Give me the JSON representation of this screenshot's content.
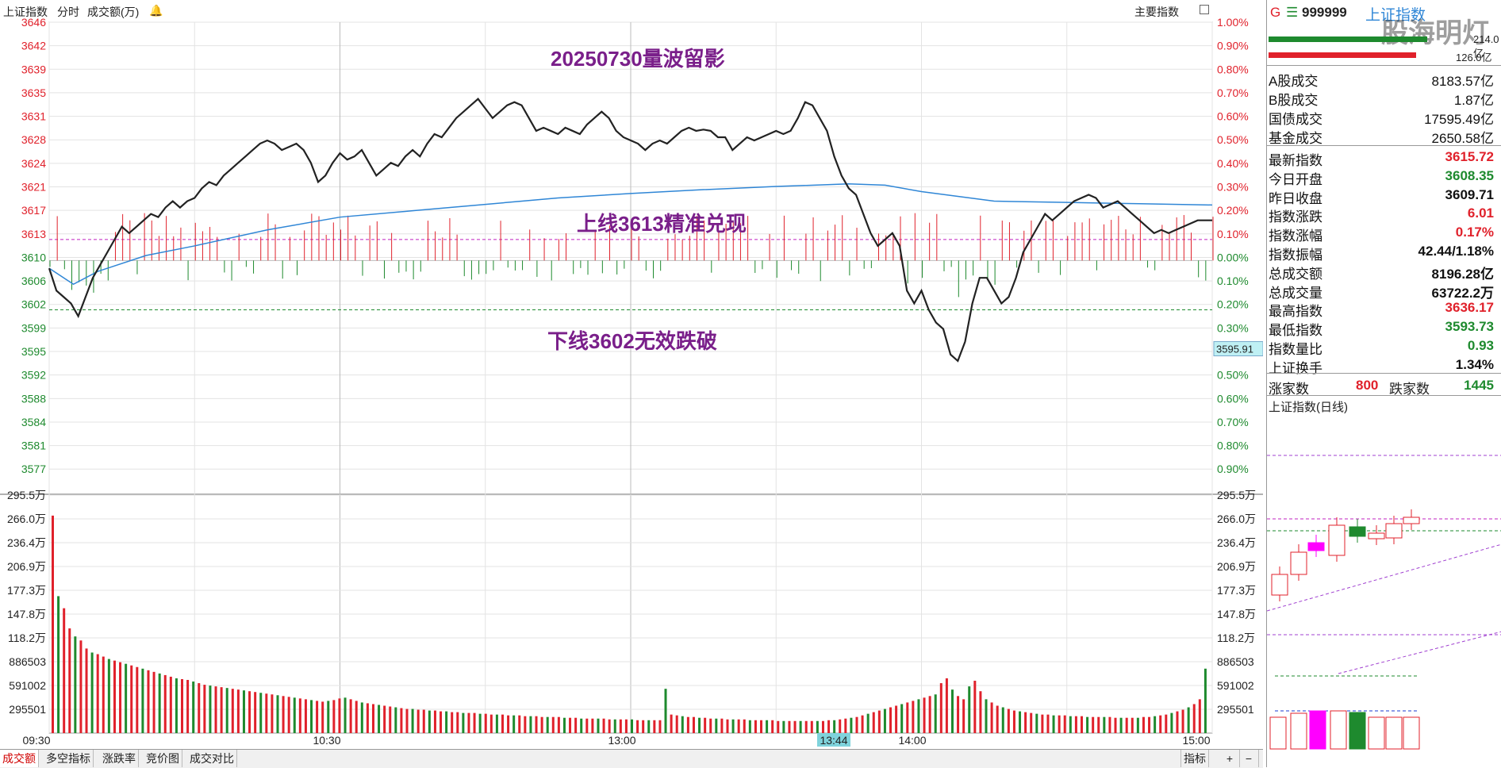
{
  "header": {
    "index_name": "上证指数",
    "mode": "分时",
    "indicator": "成交额(万)",
    "right_button": "主要指数"
  },
  "annotations": {
    "title": "20250730量波留影",
    "upper_line": "上线3613精准兑现",
    "lower_line": "下线3602无效跌破"
  },
  "price_axis": {
    "left_labels": [
      "3646",
      "3642",
      "3639",
      "3635",
      "3631",
      "3628",
      "3624",
      "3621",
      "3617",
      "3613",
      "3610",
      "3606",
      "3602",
      "3599",
      "3595",
      "3592",
      "3588",
      "3584",
      "3581",
      "3577"
    ],
    "right_labels": [
      "1.00%",
      "0.90%",
      "0.80%",
      "0.70%",
      "0.60%",
      "0.50%",
      "0.40%",
      "0.30%",
      "0.20%",
      "0.10%",
      "0.00%",
      "0.10%",
      "0.20%",
      "0.30%",
      "0.40%",
      "0.50%",
      "0.60%",
      "0.70%",
      "0.80%",
      "0.90%"
    ],
    "cursor_value": "3595.91"
  },
  "volume_axis": {
    "labels": [
      "295.5万",
      "266.0万",
      "236.4万",
      "206.9万",
      "177.3万",
      "147.8万",
      "118.2万",
      "886503",
      "591002",
      "295501"
    ]
  },
  "time_axis": {
    "labels": [
      "09:30",
      "10:30",
      "13:00",
      "14:00",
      "15:00"
    ],
    "cursor_time": "13:44"
  },
  "bottom_tabs": [
    "成交额",
    "多空指标",
    "涨跌率",
    "竞价图",
    "成交对比"
  ],
  "bottom_right": {
    "indicator_btn": "指标",
    "plus": "+",
    "minus": "−"
  },
  "side": {
    "flag": "G",
    "code": "999999",
    "name": "上证指数",
    "watermark": "股海明灯",
    "bar_values": [
      "214.0亿",
      "126.0亿"
    ],
    "turnover": [
      {
        "label": "A股成交",
        "value": "8183.57亿"
      },
      {
        "label": "B股成交",
        "value": "1.87亿"
      },
      {
        "label": "国债成交",
        "value": "17595.49亿"
      },
      {
        "label": "基金成交",
        "value": "2650.58亿"
      }
    ],
    "stats": [
      {
        "label": "最新指数",
        "value": "3615.72",
        "color": "red"
      },
      {
        "label": "今日开盘",
        "value": "3608.35",
        "color": "green"
      },
      {
        "label": "昨日收盘",
        "value": "3609.71",
        "color": "black"
      },
      {
        "label": "指数涨跌",
        "value": "6.01",
        "color": "red"
      },
      {
        "label": "指数涨幅",
        "value": "0.17%",
        "color": "red"
      },
      {
        "label": "指数振幅",
        "value": "42.44/1.18%",
        "color": "black"
      },
      {
        "label": "总成交额",
        "value": "8196.28亿",
        "color": "black"
      },
      {
        "label": "总成交量",
        "value": "63722.2万",
        "color": "black"
      },
      {
        "label": "最高指数",
        "value": "3636.17",
        "color": "red"
      },
      {
        "label": "最低指数",
        "value": "3593.73",
        "color": "green"
      },
      {
        "label": "指数量比",
        "value": "0.93",
        "color": "green"
      },
      {
        "label": "上证换手",
        "value": "1.34%",
        "color": "black"
      }
    ],
    "breadth": {
      "up_label": "涨家数",
      "up_value": "800",
      "down_label": "跌家数",
      "down_value": "1445"
    },
    "daily_title": "上证指数(日线)"
  },
  "colors": {
    "up": "#e0212b",
    "down": "#1e8a2e",
    "price_line": "#222222",
    "avg_line": "#2f86d6",
    "annotation": "#7a1f8a"
  },
  "chart_data": {
    "type": "line",
    "title": "",
    "price_series": [
      [
        0,
        3608.5
      ],
      [
        3,
        3605
      ],
      [
        6,
        3604
      ],
      [
        9,
        3603
      ],
      [
        12,
        3601
      ],
      [
        15,
        3604
      ],
      [
        18,
        3607
      ],
      [
        21,
        3609
      ],
      [
        24,
        3611
      ],
      [
        27,
        3613
      ],
      [
        30,
        3615
      ],
      [
        33,
        3614
      ],
      [
        36,
        3615
      ],
      [
        39,
        3616
      ],
      [
        42,
        3617
      ],
      [
        45,
        3616.5
      ],
      [
        48,
        3618
      ],
      [
        51,
        3619
      ],
      [
        54,
        3618
      ],
      [
        57,
        3619
      ],
      [
        60,
        3619.5
      ],
      [
        63,
        3621
      ],
      [
        66,
        3622
      ],
      [
        69,
        3621.5
      ],
      [
        72,
        3623
      ],
      [
        75,
        3624
      ],
      [
        78,
        3625
      ],
      [
        81,
        3626
      ],
      [
        84,
        3627
      ],
      [
        87,
        3628
      ],
      [
        90,
        3628.5
      ],
      [
        93,
        3628
      ],
      [
        96,
        3627
      ],
      [
        99,
        3627.5
      ],
      [
        102,
        3628
      ],
      [
        105,
        3627
      ],
      [
        108,
        3625
      ],
      [
        111,
        3622
      ],
      [
        114,
        3623
      ],
      [
        117,
        3625
      ],
      [
        120,
        3626.5
      ],
      [
        123,
        3625.5
      ],
      [
        126,
        3626
      ],
      [
        129,
        3627
      ],
      [
        132,
        3625
      ],
      [
        135,
        3623
      ],
      [
        138,
        3624
      ],
      [
        141,
        3625
      ],
      [
        144,
        3624.5
      ],
      [
        147,
        3626
      ],
      [
        150,
        3627
      ],
      [
        153,
        3626
      ],
      [
        156,
        3628
      ],
      [
        159,
        3629.5
      ],
      [
        162,
        3629
      ],
      [
        165,
        3630.5
      ],
      [
        168,
        3632
      ],
      [
        171,
        3633
      ],
      [
        174,
        3634
      ],
      [
        177,
        3635
      ],
      [
        180,
        3633.5
      ],
      [
        183,
        3632
      ],
      [
        186,
        3633
      ],
      [
        189,
        3634
      ],
      [
        192,
        3634.5
      ],
      [
        195,
        3634
      ],
      [
        198,
        3632
      ],
      [
        201,
        3630
      ],
      [
        204,
        3630.5
      ],
      [
        207,
        3630
      ],
      [
        210,
        3629.5
      ],
      [
        213,
        3630.5
      ],
      [
        216,
        3630
      ],
      [
        219,
        3629.5
      ],
      [
        222,
        3631
      ],
      [
        225,
        3632
      ],
      [
        228,
        3633
      ],
      [
        231,
        3632
      ],
      [
        234,
        3630
      ],
      [
        237,
        3629
      ],
      [
        240,
        3628.5
      ],
      [
        243,
        3628
      ],
      [
        246,
        3627
      ],
      [
        249,
        3628
      ],
      [
        252,
        3628.5
      ],
      [
        255,
        3628
      ],
      [
        258,
        3629
      ],
      [
        261,
        3630
      ],
      [
        264,
        3630.5
      ],
      [
        267,
        3630
      ],
      [
        270,
        3630.2
      ],
      [
        273,
        3630
      ],
      [
        276,
        3629
      ],
      [
        279,
        3629
      ],
      [
        282,
        3627
      ],
      [
        285,
        3628
      ],
      [
        288,
        3629
      ],
      [
        291,
        3628.5
      ],
      [
        294,
        3629
      ],
      [
        297,
        3629.5
      ],
      [
        300,
        3630
      ],
      [
        303,
        3629.5
      ],
      [
        306,
        3630
      ],
      [
        309,
        3632
      ],
      [
        312,
        3634.5
      ],
      [
        315,
        3634
      ],
      [
        318,
        3632
      ],
      [
        321,
        3630
      ],
      [
        324,
        3626
      ],
      [
        327,
        3623
      ],
      [
        330,
        3621
      ],
      [
        333,
        3620
      ],
      [
        336,
        3617
      ],
      [
        339,
        3614
      ],
      [
        342,
        3612
      ],
      [
        345,
        3613
      ],
      [
        348,
        3614
      ],
      [
        351,
        3612
      ],
      [
        354,
        3605
      ],
      [
        357,
        3603
      ],
      [
        360,
        3605
      ],
      [
        363,
        3602
      ],
      [
        366,
        3600
      ],
      [
        369,
        3599
      ],
      [
        372,
        3595
      ],
      [
        375,
        3594
      ],
      [
        378,
        3597
      ],
      [
        381,
        3603
      ],
      [
        384,
        3607
      ],
      [
        387,
        3607
      ],
      [
        390,
        3605
      ],
      [
        393,
        3603
      ],
      [
        396,
        3604
      ],
      [
        399,
        3607
      ],
      [
        402,
        3611
      ],
      [
        405,
        3613
      ],
      [
        408,
        3615
      ],
      [
        411,
        3617
      ],
      [
        414,
        3616
      ],
      [
        417,
        3617
      ],
      [
        420,
        3618
      ],
      [
        423,
        3619
      ],
      [
        426,
        3619.5
      ],
      [
        429,
        3620
      ],
      [
        432,
        3619.5
      ],
      [
        435,
        3618
      ],
      [
        438,
        3618.5
      ],
      [
        441,
        3619
      ],
      [
        444,
        3618
      ],
      [
        447,
        3617
      ],
      [
        450,
        3616
      ],
      [
        453,
        3615
      ],
      [
        456,
        3614
      ],
      [
        459,
        3614.5
      ],
      [
        462,
        3614
      ],
      [
        465,
        3614.5
      ],
      [
        468,
        3615
      ],
      [
        471,
        3615.5
      ],
      [
        474,
        3616
      ],
      [
        477,
        3616
      ],
      [
        480,
        3616
      ]
    ],
    "avg_series": [
      [
        0,
        3608.5
      ],
      [
        10,
        3606
      ],
      [
        20,
        3608
      ],
      [
        40,
        3610.5
      ],
      [
        60,
        3612
      ],
      [
        90,
        3614.5
      ],
      [
        120,
        3616.5
      ],
      [
        150,
        3617.5
      ],
      [
        180,
        3618.5
      ],
      [
        210,
        3619.5
      ],
      [
        240,
        3620.2
      ],
      [
        270,
        3620.8
      ],
      [
        300,
        3621.3
      ],
      [
        330,
        3621.7
      ],
      [
        345,
        3621.5
      ],
      [
        360,
        3620.5
      ],
      [
        390,
        3619
      ],
      [
        420,
        3618.8
      ],
      [
        450,
        3618.6
      ],
      [
        480,
        3618.4
      ]
    ],
    "ylim": [
      3574.5,
      3647
    ],
    "prev_close": 3609.71,
    "upper_line": 3613,
    "lower_line": 3602,
    "volume_ylim": [
      0,
      2955000
    ],
    "volume_series": [
      2700000,
      1700000,
      1550000,
      1300000,
      1200000,
      1150000,
      1050000,
      1000000,
      980000,
      950000,
      920000,
      900000,
      880000,
      860000,
      840000,
      820000,
      800000,
      780000,
      760000,
      740000,
      720000,
      700000,
      680000,
      670000,
      660000,
      640000,
      620000,
      600000,
      590000,
      580000,
      570000,
      560000,
      550000,
      540000,
      530000,
      520000,
      510000,
      500000,
      490000,
      480000,
      470000,
      460000,
      450000,
      440000,
      430000,
      420000,
      410000,
      400000,
      390000,
      400000,
      410000,
      430000,
      440000,
      420000,
      400000,
      380000,
      370000,
      360000,
      350000,
      340000,
      330000,
      320000,
      310000,
      300000,
      300000,
      290000,
      290000,
      280000,
      280000,
      270000,
      270000,
      260000,
      260000,
      250000,
      250000,
      250000,
      240000,
      240000,
      230000,
      230000,
      230000,
      220000,
      220000,
      220000,
      210000,
      210000,
      210000,
      200000,
      200000,
      200000,
      200000,
      190000,
      190000,
      190000,
      180000,
      180000,
      180000,
      180000,
      180000,
      170000,
      170000,
      170000,
      170000,
      170000,
      160000,
      160000,
      160000,
      160000,
      160000,
      550000,
      230000,
      220000,
      210000,
      200000,
      200000,
      190000,
      190000,
      180000,
      180000,
      180000,
      170000,
      170000,
      170000,
      170000,
      160000,
      160000,
      160000,
      160000,
      160000,
      150000,
      150000,
      150000,
      150000,
      150000,
      150000,
      150000,
      150000,
      150000,
      160000,
      160000,
      170000,
      180000,
      190000,
      200000,
      220000,
      240000,
      260000,
      280000,
      300000,
      320000,
      340000,
      360000,
      380000,
      400000,
      420000,
      440000,
      460000,
      480000,
      620000,
      680000,
      540000,
      460000,
      420000,
      580000,
      650000,
      520000,
      420000,
      380000,
      340000,
      320000,
      300000,
      280000,
      270000,
      260000,
      250000,
      240000,
      230000,
      230000,
      220000,
      220000,
      220000,
      210000,
      210000,
      210000,
      200000,
      200000,
      200000,
      200000,
      200000,
      190000,
      190000,
      190000,
      190000,
      190000,
      200000,
      200000,
      210000,
      220000,
      230000,
      250000,
      270000,
      290000,
      320000,
      360000,
      420000,
      800000
    ]
  }
}
